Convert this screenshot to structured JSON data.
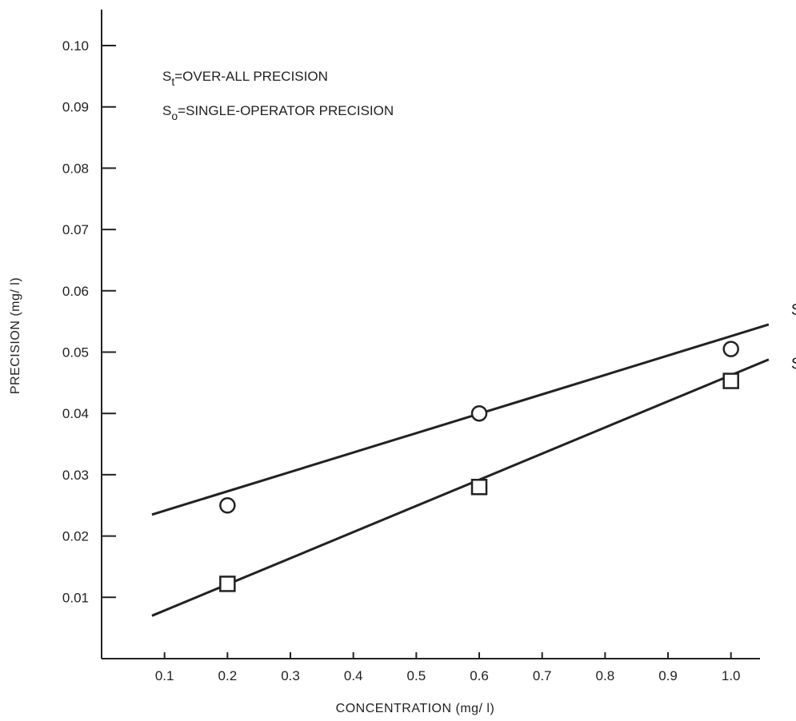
{
  "chart_data": {
    "type": "scatter",
    "title": "",
    "xlabel": "CONCENTRATION (mg/ l)",
    "ylabel": "PRECISION (mg/ l)",
    "xlim": [
      0,
      1.06
    ],
    "ylim": [
      0,
      0.105
    ],
    "x_ticks": [
      "0.1",
      "0.2",
      "0.3",
      "0.4",
      "0.5",
      "0.6",
      "0.7",
      "0.8",
      "0.9",
      "1.0"
    ],
    "y_ticks": [
      "0.01",
      "0.02",
      "0.03",
      "0.04",
      "0.05",
      "0.06",
      "0.07",
      "0.08",
      "0.09",
      "0.10"
    ],
    "grid": false,
    "legend": [
      {
        "symbol": "S",
        "subscript": "t",
        "text": "=OVER-ALL PRECISION"
      },
      {
        "symbol": "S",
        "subscript": "o",
        "text": "=SINGLE-OPERATOR PRECISION"
      }
    ],
    "series": [
      {
        "name": "S_t",
        "label_main": "S",
        "label_sub": "t",
        "marker": "circle",
        "points": [
          {
            "x": 0.2,
            "y": 0.025
          },
          {
            "x": 0.6,
            "y": 0.04
          },
          {
            "x": 1.0,
            "y": 0.0505
          }
        ],
        "fit_line": [
          {
            "x": 0.08,
            "y": 0.0235
          },
          {
            "x": 1.06,
            "y": 0.0545
          }
        ]
      },
      {
        "name": "S_o",
        "label_main": "S",
        "label_sub": "o",
        "marker": "square",
        "points": [
          {
            "x": 0.2,
            "y": 0.0122
          },
          {
            "x": 0.6,
            "y": 0.028
          },
          {
            "x": 1.0,
            "y": 0.0453
          }
        ],
        "fit_line": [
          {
            "x": 0.08,
            "y": 0.007
          },
          {
            "x": 1.06,
            "y": 0.0488
          }
        ]
      }
    ]
  }
}
